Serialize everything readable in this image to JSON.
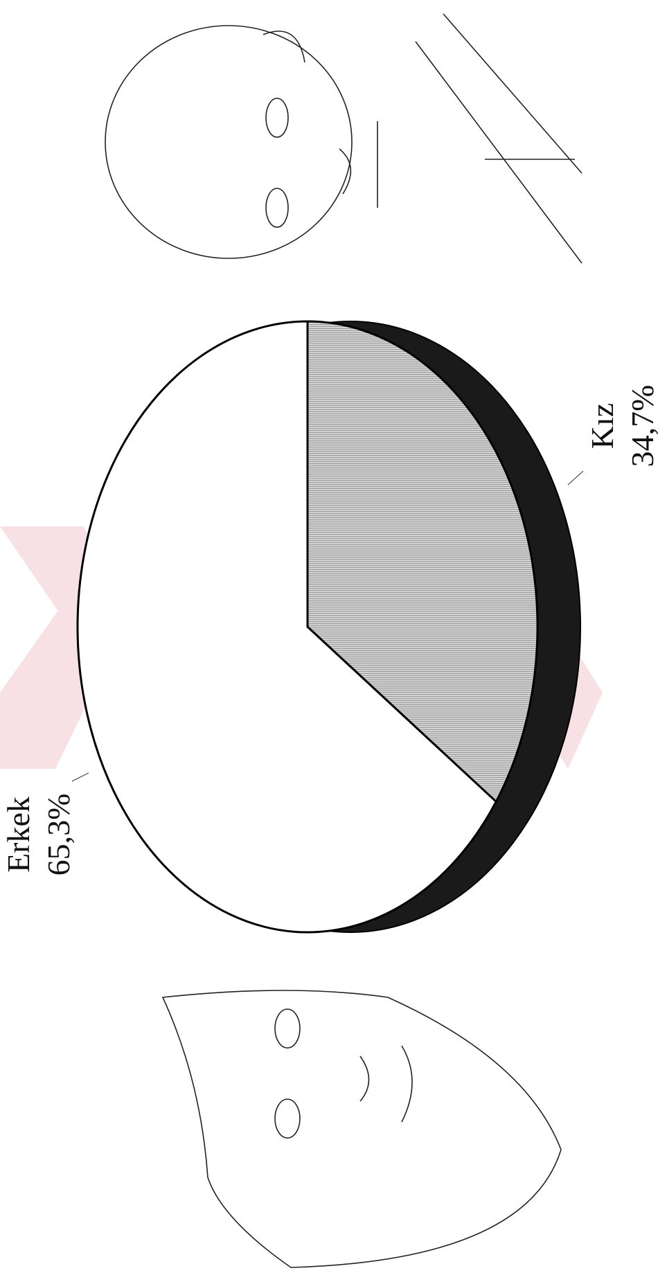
{
  "chart_data": {
    "type": "pie",
    "categories": [
      "Erkek",
      "Kız"
    ],
    "values": [
      65.3,
      34.7
    ],
    "value_labels": [
      "65,3%",
      "34,7%"
    ],
    "colors": [
      "#ffffff",
      "#c4c4c4"
    ]
  }
}
